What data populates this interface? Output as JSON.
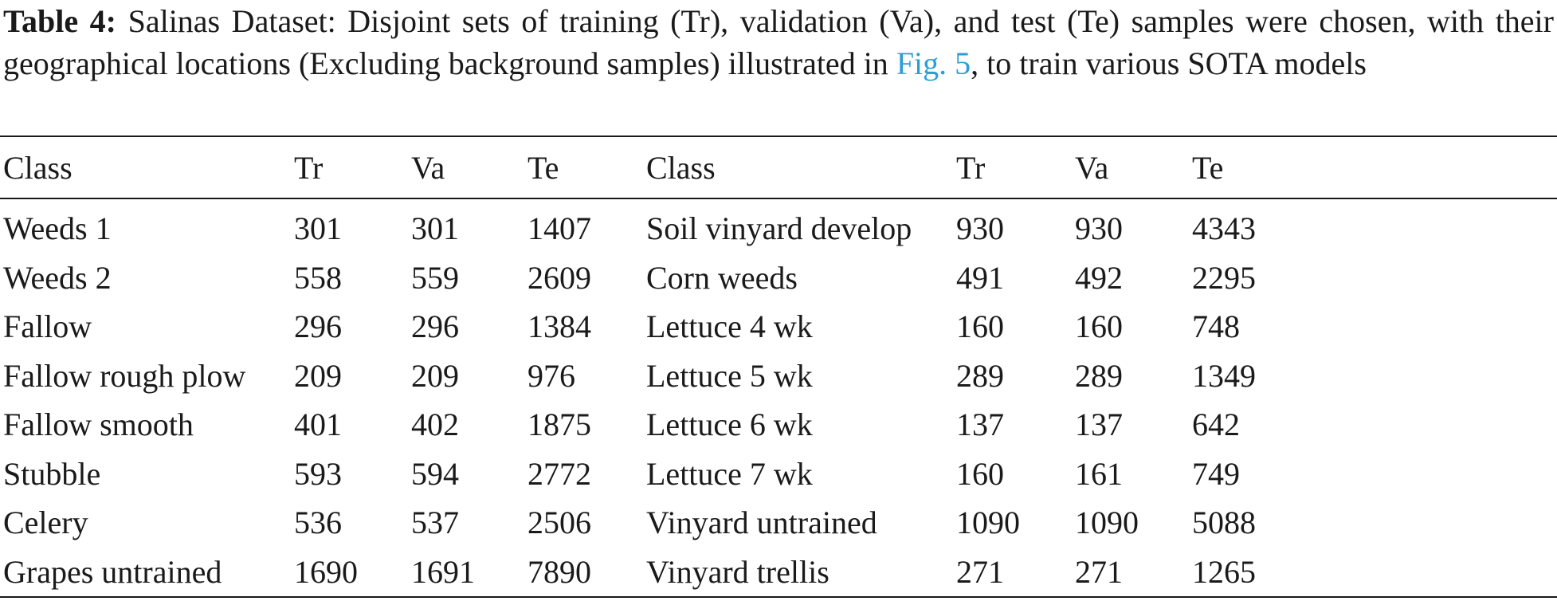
{
  "caption": {
    "label": "Table 4:",
    "text_before_ref": " Salinas Dataset: Disjoint sets of training (Tr), validation (Va), and test (Te) samples were chosen, with their geographical locations (Excluding background samples) illustrated in ",
    "figure_ref": "Fig. 5",
    "text_after_ref": ", to train various SOTA models"
  },
  "table": {
    "headers": [
      "Class",
      "Tr",
      "Va",
      "Te",
      "Class",
      "Tr",
      "Va",
      "Te"
    ],
    "rows": [
      [
        "Weeds 1",
        "301",
        "301",
        "1407",
        "Soil vinyard develop",
        "930",
        "930",
        "4343"
      ],
      [
        "Weeds 2",
        "558",
        "559",
        "2609",
        "Corn weeds",
        "491",
        "492",
        "2295"
      ],
      [
        "Fallow",
        "296",
        "296",
        "1384",
        "Lettuce 4 wk",
        "160",
        "160",
        "748"
      ],
      [
        "Fallow rough plow",
        "209",
        "209",
        "976",
        "Lettuce 5 wk",
        "289",
        "289",
        "1349"
      ],
      [
        "Fallow smooth",
        "401",
        "402",
        "1875",
        "Lettuce 6 wk",
        "137",
        "137",
        "642"
      ],
      [
        "Stubble",
        "593",
        "594",
        "2772",
        "Lettuce 7 wk",
        "160",
        "161",
        "749"
      ],
      [
        "Celery",
        "536",
        "537",
        "2506",
        "Vinyard untrained",
        "1090",
        "1090",
        "5088"
      ],
      [
        "Grapes untrained",
        "1690",
        "1691",
        "7890",
        "Vinyard trellis",
        "271",
        "271",
        "1265"
      ]
    ]
  },
  "colors": {
    "text": "#1a1a1a",
    "link": "#2a9fd6"
  }
}
